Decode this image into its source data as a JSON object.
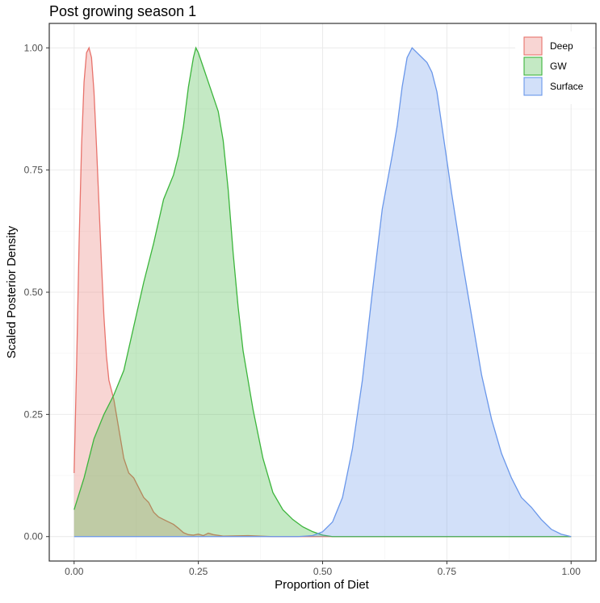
{
  "chart_data": {
    "type": "area",
    "title": "Post growing season 1",
    "xlabel": "Proportion of Diet",
    "ylabel": "Scaled Posterior Density",
    "xlim": [
      -0.05,
      1.05
    ],
    "ylim": [
      -0.05,
      1.05
    ],
    "x_ticks": [
      0.0,
      0.25,
      0.5,
      0.75,
      1.0
    ],
    "x_tick_labels": [
      "0.00",
      "0.25",
      "0.50",
      "0.75",
      "1.00"
    ],
    "y_ticks": [
      0.0,
      0.25,
      0.5,
      0.75,
      1.0
    ],
    "y_tick_labels": [
      "0.00",
      "0.25",
      "0.50",
      "0.75",
      "1.00"
    ],
    "grid": true,
    "legend_position": "top-right",
    "series": [
      {
        "name": "Deep",
        "color": "#e8736c",
        "fill": "#f5cfcc",
        "points": [
          [
            0.0,
            0.13
          ],
          [
            0.005,
            0.35
          ],
          [
            0.01,
            0.6
          ],
          [
            0.015,
            0.8
          ],
          [
            0.02,
            0.93
          ],
          [
            0.025,
            0.99
          ],
          [
            0.03,
            1.0
          ],
          [
            0.035,
            0.98
          ],
          [
            0.04,
            0.91
          ],
          [
            0.045,
            0.8
          ],
          [
            0.05,
            0.68
          ],
          [
            0.055,
            0.56
          ],
          [
            0.06,
            0.45
          ],
          [
            0.065,
            0.37
          ],
          [
            0.07,
            0.32
          ],
          [
            0.075,
            0.3
          ],
          [
            0.08,
            0.28
          ],
          [
            0.085,
            0.25
          ],
          [
            0.09,
            0.22
          ],
          [
            0.095,
            0.19
          ],
          [
            0.1,
            0.16
          ],
          [
            0.11,
            0.13
          ],
          [
            0.12,
            0.12
          ],
          [
            0.13,
            0.1
          ],
          [
            0.14,
            0.08
          ],
          [
            0.15,
            0.07
          ],
          [
            0.16,
            0.05
          ],
          [
            0.17,
            0.04
          ],
          [
            0.18,
            0.035
          ],
          [
            0.19,
            0.03
          ],
          [
            0.2,
            0.025
          ],
          [
            0.21,
            0.017
          ],
          [
            0.22,
            0.008
          ],
          [
            0.23,
            0.004
          ],
          [
            0.24,
            0.003
          ],
          [
            0.25,
            0.005
          ],
          [
            0.26,
            0.002
          ],
          [
            0.27,
            0.007
          ],
          [
            0.28,
            0.004
          ],
          [
            0.3,
            0.001
          ],
          [
            0.35,
            0.002
          ],
          [
            0.4,
            0.0
          ],
          [
            0.6,
            0.0
          ],
          [
            0.8,
            0.0
          ],
          [
            1.0,
            0.0
          ]
        ]
      },
      {
        "name": "GW",
        "color": "#3cb53c",
        "fill": "#bde8bf",
        "points": [
          [
            0.0,
            0.055
          ],
          [
            0.02,
            0.12
          ],
          [
            0.04,
            0.2
          ],
          [
            0.06,
            0.25
          ],
          [
            0.08,
            0.29
          ],
          [
            0.1,
            0.34
          ],
          [
            0.12,
            0.43
          ],
          [
            0.14,
            0.52
          ],
          [
            0.16,
            0.6
          ],
          [
            0.18,
            0.69
          ],
          [
            0.2,
            0.74
          ],
          [
            0.21,
            0.78
          ],
          [
            0.22,
            0.84
          ],
          [
            0.23,
            0.92
          ],
          [
            0.24,
            0.98
          ],
          [
            0.245,
            1.0
          ],
          [
            0.25,
            0.99
          ],
          [
            0.26,
            0.96
          ],
          [
            0.27,
            0.93
          ],
          [
            0.28,
            0.9
          ],
          [
            0.29,
            0.87
          ],
          [
            0.3,
            0.81
          ],
          [
            0.31,
            0.71
          ],
          [
            0.32,
            0.58
          ],
          [
            0.33,
            0.47
          ],
          [
            0.34,
            0.38
          ],
          [
            0.36,
            0.26
          ],
          [
            0.38,
            0.16
          ],
          [
            0.4,
            0.09
          ],
          [
            0.42,
            0.055
          ],
          [
            0.44,
            0.035
          ],
          [
            0.46,
            0.02
          ],
          [
            0.48,
            0.01
          ],
          [
            0.5,
            0.003
          ],
          [
            0.52,
            0.0
          ],
          [
            0.6,
            0.0
          ],
          [
            0.8,
            0.0
          ],
          [
            1.0,
            0.0
          ]
        ]
      },
      {
        "name": "Surface",
        "color": "#6a97ea",
        "fill": "#cddcf6",
        "points": [
          [
            0.0,
            0.0
          ],
          [
            0.3,
            0.0
          ],
          [
            0.45,
            0.0
          ],
          [
            0.48,
            0.002
          ],
          [
            0.5,
            0.01
          ],
          [
            0.52,
            0.03
          ],
          [
            0.54,
            0.08
          ],
          [
            0.56,
            0.18
          ],
          [
            0.58,
            0.32
          ],
          [
            0.6,
            0.5
          ],
          [
            0.62,
            0.67
          ],
          [
            0.64,
            0.78
          ],
          [
            0.65,
            0.84
          ],
          [
            0.66,
            0.92
          ],
          [
            0.67,
            0.98
          ],
          [
            0.68,
            1.0
          ],
          [
            0.69,
            0.99
          ],
          [
            0.7,
            0.98
          ],
          [
            0.71,
            0.97
          ],
          [
            0.72,
            0.95
          ],
          [
            0.73,
            0.91
          ],
          [
            0.74,
            0.84
          ],
          [
            0.75,
            0.77
          ],
          [
            0.76,
            0.7
          ],
          [
            0.78,
            0.57
          ],
          [
            0.8,
            0.45
          ],
          [
            0.82,
            0.33
          ],
          [
            0.84,
            0.24
          ],
          [
            0.86,
            0.17
          ],
          [
            0.88,
            0.12
          ],
          [
            0.9,
            0.08
          ],
          [
            0.92,
            0.06
          ],
          [
            0.94,
            0.035
          ],
          [
            0.96,
            0.015
          ],
          [
            0.98,
            0.005
          ],
          [
            1.0,
            0.0
          ]
        ]
      }
    ]
  }
}
